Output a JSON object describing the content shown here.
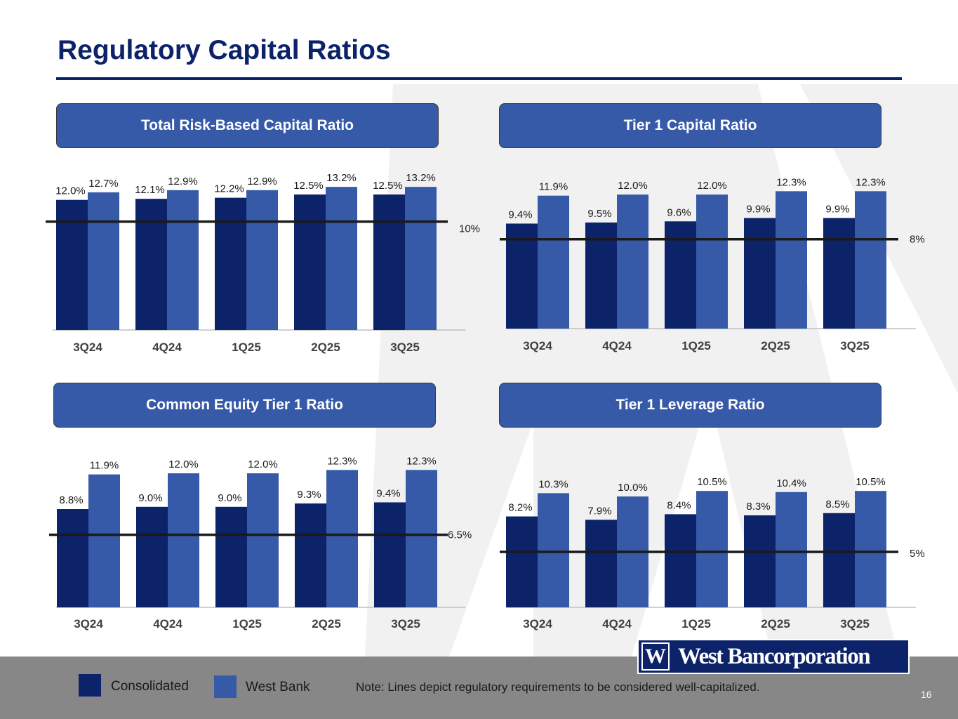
{
  "page": {
    "title": "Regulatory Capital Ratios",
    "page_number": "16",
    "note": "Note: Lines depict regulatory requirements to be considered well-capitalized."
  },
  "legend": [
    {
      "label": "Consolidated",
      "color": "#0c2269"
    },
    {
      "label": "West Bank",
      "color": "#3659a8"
    }
  ],
  "logo": {
    "mark": "W",
    "text": "West Bancorporation"
  },
  "colors": {
    "consolidated": "#0c2269",
    "west_bank": "#3659a8",
    "header_bg": "#3659a8",
    "footer_bg": "#878787"
  },
  "chart_data": [
    {
      "type": "bar",
      "title": "Total Risk-Based Capital Ratio",
      "categories": [
        "3Q24",
        "4Q24",
        "1Q25",
        "2Q25",
        "3Q25"
      ],
      "series": [
        {
          "name": "Consolidated",
          "values": [
            12.0,
            12.1,
            12.2,
            12.5,
            12.5
          ],
          "labels": [
            "12.0%",
            "12.1%",
            "12.2%",
            "12.5%",
            "12.5%"
          ]
        },
        {
          "name": "West Bank",
          "values": [
            12.7,
            12.9,
            12.9,
            13.2,
            13.2
          ],
          "labels": [
            "12.7%",
            "12.9%",
            "12.9%",
            "13.2%",
            "13.2%"
          ]
        }
      ],
      "threshold": {
        "value": 10,
        "label": "10%"
      },
      "ylim": [
        0,
        13.6
      ]
    },
    {
      "type": "bar",
      "title": "Tier 1 Capital Ratio",
      "categories": [
        "3Q24",
        "4Q24",
        "1Q25",
        "2Q25",
        "3Q25"
      ],
      "series": [
        {
          "name": "Consolidated",
          "values": [
            9.4,
            9.5,
            9.6,
            9.9,
            9.9
          ],
          "labels": [
            "9.4%",
            "9.5%",
            "9.6%",
            "9.9%",
            "9.9%"
          ]
        },
        {
          "name": "West Bank",
          "values": [
            11.9,
            12.0,
            12.0,
            12.3,
            12.3
          ],
          "labels": [
            "11.9%",
            "12.0%",
            "12.0%",
            "12.3%",
            "12.3%"
          ]
        }
      ],
      "threshold": {
        "value": 8,
        "label": "8%"
      },
      "ylim": [
        0,
        13.2
      ]
    },
    {
      "type": "bar",
      "title": "Common Equity Tier 1 Ratio",
      "categories": [
        "3Q24",
        "4Q24",
        "1Q25",
        "2Q25",
        "3Q25"
      ],
      "series": [
        {
          "name": "Consolidated",
          "values": [
            8.8,
            9.0,
            9.0,
            9.3,
            9.4
          ],
          "labels": [
            "8.8%",
            "9.0%",
            "9.0%",
            "9.3%",
            "9.4%"
          ]
        },
        {
          "name": "West Bank",
          "values": [
            11.9,
            12.0,
            12.0,
            12.3,
            12.3
          ],
          "labels": [
            "11.9%",
            "12.0%",
            "12.0%",
            "12.3%",
            "12.3%"
          ]
        }
      ],
      "threshold": {
        "value": 6.5,
        "label": "6.5%"
      },
      "ylim": [
        0,
        13.2
      ]
    },
    {
      "type": "bar",
      "title": "Tier 1 Leverage Ratio",
      "categories": [
        "3Q24",
        "4Q24",
        "1Q25",
        "2Q25",
        "3Q25"
      ],
      "series": [
        {
          "name": "Consolidated",
          "values": [
            8.2,
            7.9,
            8.4,
            8.3,
            8.5
          ],
          "labels": [
            "8.2%",
            "7.9%",
            "8.4%",
            "8.3%",
            "8.5%"
          ]
        },
        {
          "name": "West Bank",
          "values": [
            10.3,
            10.0,
            10.5,
            10.4,
            10.5
          ],
          "labels": [
            "10.3%",
            "10.0%",
            "10.5%",
            "10.4%",
            "10.5%"
          ]
        }
      ],
      "threshold": {
        "value": 5,
        "label": "5%"
      },
      "ylim": [
        0,
        11.4
      ]
    }
  ]
}
